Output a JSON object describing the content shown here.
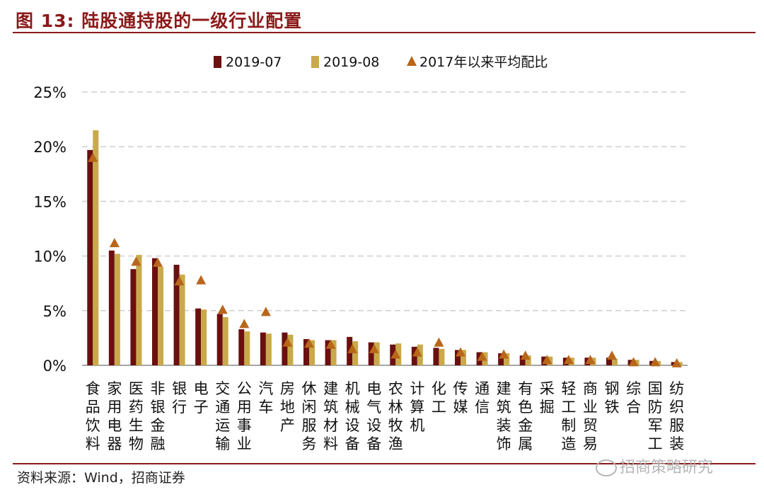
{
  "header": {
    "title": "图 13:  陆股通持股的一级行业配置"
  },
  "footer": {
    "source": "资料来源：Wind，招商证券",
    "watermark": "招商策略研究"
  },
  "colors": {
    "series_1": "#6b0f0f",
    "series_2": "#c9a94a",
    "series_3": "#b8661a",
    "grid": "#cfcfcf",
    "rule": "#8b1a1a"
  },
  "chart_data": {
    "type": "bar",
    "title": "",
    "xlabel": "",
    "ylabel": "",
    "ylim": [
      0,
      25
    ],
    "yticks": [
      "0%",
      "5%",
      "10%",
      "15%",
      "20%",
      "25%"
    ],
    "grid": true,
    "legend_position": "top",
    "categories": [
      "食品饮料",
      "家用电器",
      "医药生物",
      "非银金融",
      "银行",
      "电子",
      "交通运输",
      "公用事业",
      "汽车",
      "房地产",
      "休闲服务",
      "建筑材料",
      "机械设备",
      "电气设备",
      "农林牧渔",
      "计算机",
      "化工",
      "传媒",
      "通信",
      "建筑装饰",
      "有色金属",
      "采掘",
      "轻工制造",
      "商业贸易",
      "钢铁",
      "综合",
      "国防军工",
      "纺织服装"
    ],
    "series": [
      {
        "name": "2019-07",
        "kind": "bar",
        "values": [
          19.7,
          10.5,
          8.8,
          9.8,
          9.2,
          5.2,
          4.7,
          3.3,
          3.0,
          3.0,
          2.4,
          2.3,
          2.6,
          2.1,
          1.9,
          1.7,
          1.6,
          1.4,
          1.2,
          1.1,
          0.9,
          0.8,
          0.7,
          0.7,
          0.7,
          0.5,
          0.4,
          0.3
        ]
      },
      {
        "name": "2019-08",
        "kind": "bar",
        "values": [
          21.5,
          10.2,
          10.1,
          9.0,
          8.3,
          5.1,
          4.4,
          3.1,
          2.9,
          2.8,
          2.3,
          2.3,
          2.2,
          2.1,
          2.0,
          1.9,
          1.5,
          1.4,
          1.2,
          1.1,
          0.9,
          0.8,
          0.7,
          0.7,
          0.6,
          0.5,
          0.4,
          0.3
        ]
      },
      {
        "name": "2017年以来平均配比",
        "kind": "marker",
        "values": [
          19.0,
          11.2,
          9.5,
          9.4,
          7.7,
          7.8,
          5.1,
          3.8,
          4.9,
          2.1,
          2.0,
          1.9,
          1.5,
          1.5,
          1.0,
          1.2,
          2.1,
          1.2,
          0.8,
          1.0,
          0.9,
          0.5,
          0.5,
          0.5,
          0.9,
          0.3,
          0.3,
          0.2
        ]
      }
    ]
  }
}
